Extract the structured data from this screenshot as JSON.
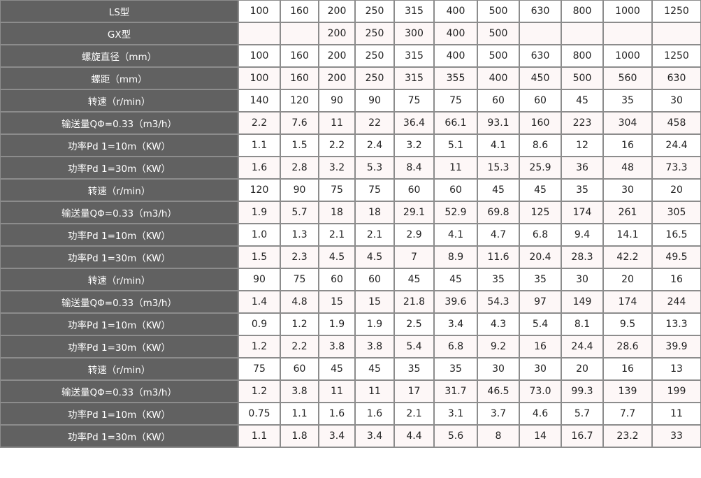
{
  "rows": [
    {
      "label": "LS型",
      "values": [
        "100",
        "160",
        "200",
        "250",
        "315",
        "400",
        "500",
        "630",
        "800",
        "1000",
        "1250"
      ]
    },
    {
      "label": "GX型",
      "values": [
        "",
        "",
        "200",
        "250",
        "300",
        "400",
        "500",
        "",
        "",
        "",
        ""
      ]
    },
    {
      "label": "螺旋直径（mm）",
      "values": [
        "100",
        "160",
        "200",
        "250",
        "315",
        "400",
        "500",
        "630",
        "800",
        "1000",
        "1250"
      ]
    },
    {
      "label": "螺距（mm）",
      "values": [
        "100",
        "160",
        "200",
        "250",
        "315",
        "355",
        "400",
        "450",
        "500",
        "560",
        "630"
      ]
    },
    {
      "label": "转速（r/min）",
      "values": [
        "140",
        "120",
        "90",
        "90",
        "75",
        "75",
        "60",
        "60",
        "45",
        "35",
        "30"
      ]
    },
    {
      "label": "输送量QΦ=0.33（m3/h）",
      "values": [
        "2.2",
        "7.6",
        "11",
        "22",
        "36.4",
        "66.1",
        "93.1",
        "160",
        "223",
        "304",
        "458"
      ]
    },
    {
      "label": "功率Pd 1=10m（KW）",
      "values": [
        "1.1",
        "1.5",
        "2.2",
        "2.4",
        "3.2",
        "5.1",
        "4.1",
        "8.6",
        "12",
        "16",
        "24.4"
      ]
    },
    {
      "label": "功率Pd 1=30m（KW）",
      "values": [
        "1.6",
        "2.8",
        "3.2",
        "5.3",
        "8.4",
        "11",
        "15.3",
        "25.9",
        "36",
        "48",
        "73.3"
      ]
    },
    {
      "label": "转速（r/min）",
      "values": [
        "120",
        "90",
        "75",
        "75",
        "60",
        "60",
        "45",
        "45",
        "35",
        "30",
        "20"
      ]
    },
    {
      "label": "输送量QΦ=0.33（m3/h）",
      "values": [
        "1.9",
        "5.7",
        "18",
        "18",
        "29.1",
        "52.9",
        "69.8",
        "125",
        "174",
        "261",
        "305"
      ]
    },
    {
      "label": "功率Pd 1=10m（KW）",
      "values": [
        "1.0",
        "1.3",
        "2.1",
        "2.1",
        "2.9",
        "4.1",
        "4.7",
        "6.8",
        "9.4",
        "14.1",
        "16.5"
      ]
    },
    {
      "label": "功率Pd 1=30m（KW）",
      "values": [
        "1.5",
        "2.3",
        "4.5",
        "4.5",
        "7",
        "8.9",
        "11.6",
        "20.4",
        "28.3",
        "42.2",
        "49.5"
      ]
    },
    {
      "label": "转速（r/min）",
      "values": [
        "90",
        "75",
        "60",
        "60",
        "45",
        "45",
        "35",
        "35",
        "30",
        "20",
        "16"
      ]
    },
    {
      "label": "输送量QΦ=0.33（m3/h）",
      "values": [
        "1.4",
        "4.8",
        "15",
        "15",
        "21.8",
        "39.6",
        "54.3",
        "97",
        "149",
        "174",
        "244"
      ]
    },
    {
      "label": "功率Pd 1=10m（KW）",
      "values": [
        "0.9",
        "1.2",
        "1.9",
        "1.9",
        "2.5",
        "3.4",
        "4.3",
        "5.4",
        "8.1",
        "9.5",
        "13.3"
      ]
    },
    {
      "label": "功率Pd 1=30m（KW）",
      "values": [
        "1.2",
        "2.2",
        "3.8",
        "3.8",
        "5.4",
        "6.8",
        "9.2",
        "16",
        "24.4",
        "28.6",
        "39.9"
      ]
    },
    {
      "label": "转速（r/min）",
      "values": [
        "75",
        "60",
        "45",
        "45",
        "35",
        "35",
        "30",
        "30",
        "20",
        "16",
        "13"
      ]
    },
    {
      "label": "输送量QΦ=0.33（m3/h）",
      "values": [
        "1.2",
        "3.8",
        "11",
        "11",
        "17",
        "31.7",
        "46.5",
        "73.0",
        "99.3",
        "139",
        "199"
      ]
    },
    {
      "label": "功率Pd 1=10m（KW）",
      "values": [
        "0.75",
        "1.1",
        "1.6",
        "1.6",
        "2.1",
        "3.1",
        "3.7",
        "4.6",
        "5.7",
        "7.7",
        "11"
      ]
    },
    {
      "label": "功率Pd 1=30m（KW）",
      "values": [
        "1.1",
        "1.8",
        "3.4",
        "3.4",
        "4.4",
        "5.6",
        "8",
        "14",
        "16.7",
        "23.2",
        "33"
      ]
    }
  ]
}
